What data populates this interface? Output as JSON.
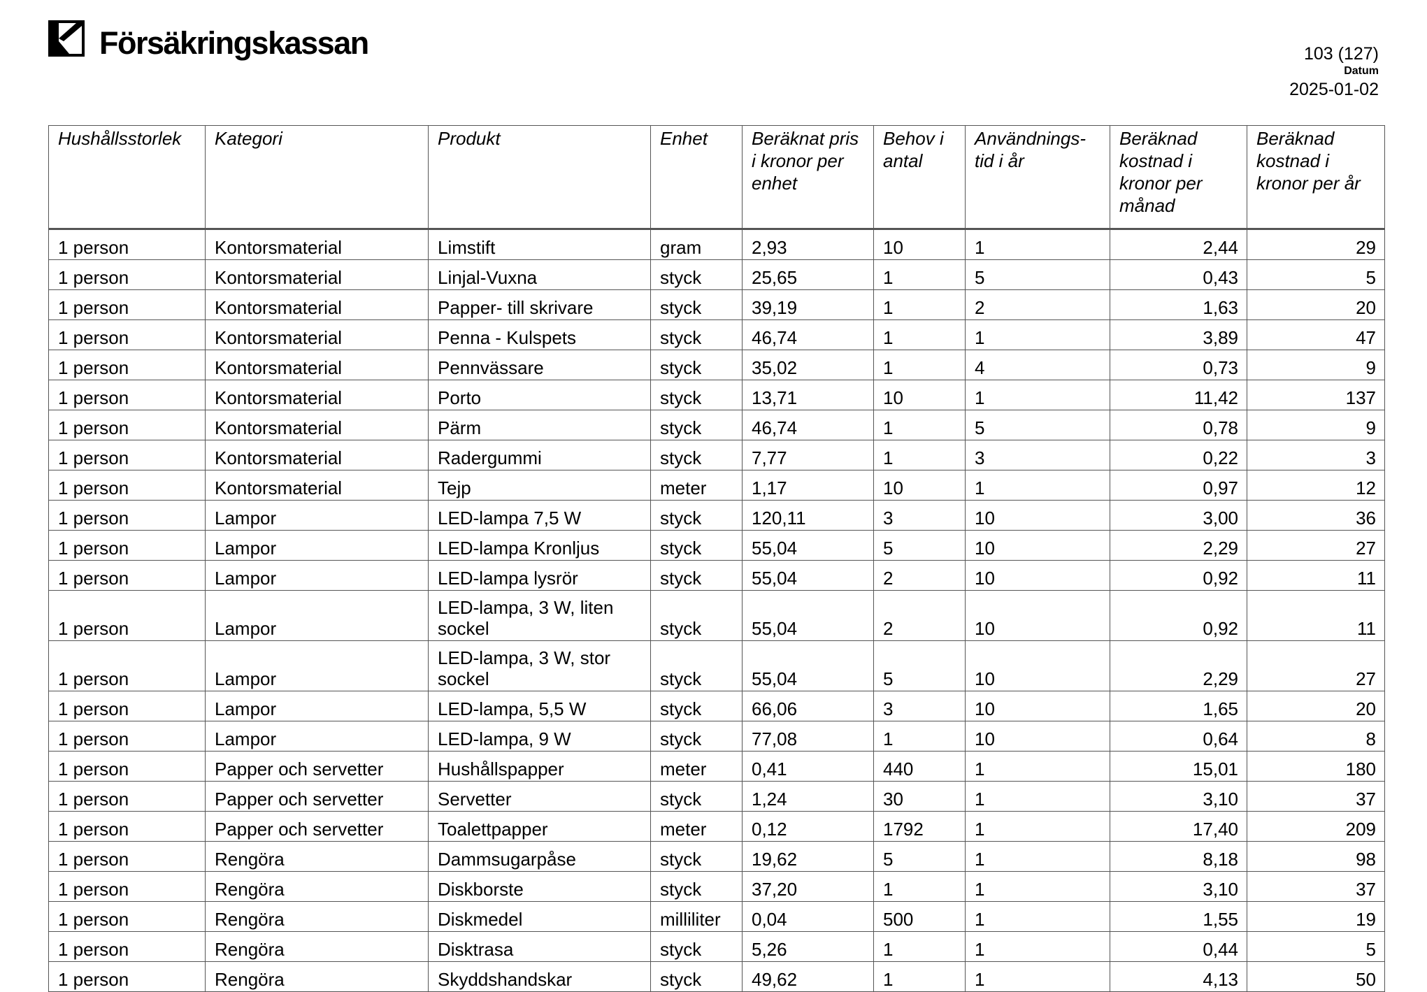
{
  "header": {
    "brand": "Försäkringskassan",
    "page_number": "103 (127)",
    "date_label": "Datum",
    "date": "2025-01-02"
  },
  "table": {
    "columns": [
      "Hushållsstorlek",
      "Kategori",
      "Produkt",
      "Enhet",
      "Beräknat pris i kronor per enhet",
      "Behov i antal",
      "Användnings-tid i år",
      "Beräknad kostnad i kronor per månad",
      "Beräknad kostnad i kronor per år"
    ],
    "rows": [
      [
        "1 person",
        "Kontorsmaterial",
        "Limstift",
        "gram",
        "2,93",
        "10",
        "1",
        "2,44",
        "29"
      ],
      [
        "1 person",
        "Kontorsmaterial",
        "Linjal-Vuxna",
        "styck",
        "25,65",
        "1",
        "5",
        "0,43",
        "5"
      ],
      [
        "1 person",
        "Kontorsmaterial",
        "Papper- till skrivare",
        "styck",
        "39,19",
        "1",
        "2",
        "1,63",
        "20"
      ],
      [
        "1 person",
        "Kontorsmaterial",
        "Penna - Kulspets",
        "styck",
        "46,74",
        "1",
        "1",
        "3,89",
        "47"
      ],
      [
        "1 person",
        "Kontorsmaterial",
        "Pennvässare",
        "styck",
        "35,02",
        "1",
        "4",
        "0,73",
        "9"
      ],
      [
        "1 person",
        "Kontorsmaterial",
        "Porto",
        "styck",
        "13,71",
        "10",
        "1",
        "11,42",
        "137"
      ],
      [
        "1 person",
        "Kontorsmaterial",
        "Pärm",
        "styck",
        "46,74",
        "1",
        "5",
        "0,78",
        "9"
      ],
      [
        "1 person",
        "Kontorsmaterial",
        "Radergummi",
        "styck",
        "7,77",
        "1",
        "3",
        "0,22",
        "3"
      ],
      [
        "1 person",
        "Kontorsmaterial",
        "Tejp",
        "meter",
        "1,17",
        "10",
        "1",
        "0,97",
        "12"
      ],
      [
        "1 person",
        "Lampor",
        "LED-lampa 7,5 W",
        "styck",
        "120,11",
        "3",
        "10",
        "3,00",
        "36"
      ],
      [
        "1 person",
        "Lampor",
        "LED-lampa Kronljus",
        "styck",
        "55,04",
        "5",
        "10",
        "2,29",
        "27"
      ],
      [
        "1 person",
        "Lampor",
        "LED-lampa lysrör",
        "styck",
        "55,04",
        "2",
        "10",
        "0,92",
        "11"
      ],
      [
        "1 person",
        "Lampor",
        "LED-lampa, 3 W, liten sockel",
        "styck",
        "55,04",
        "2",
        "10",
        "0,92",
        "11"
      ],
      [
        "1 person",
        "Lampor",
        "LED-lampa, 3 W, stor sockel",
        "styck",
        "55,04",
        "5",
        "10",
        "2,29",
        "27"
      ],
      [
        "1 person",
        "Lampor",
        "LED-lampa, 5,5 W",
        "styck",
        "66,06",
        "3",
        "10",
        "1,65",
        "20"
      ],
      [
        "1 person",
        "Lampor",
        "LED-lampa, 9 W",
        "styck",
        "77,08",
        "1",
        "10",
        "0,64",
        "8"
      ],
      [
        "1 person",
        "Papper och servetter",
        "Hushållspapper",
        "meter",
        "0,41",
        "440",
        "1",
        "15,01",
        "180"
      ],
      [
        "1 person",
        "Papper och servetter",
        "Servetter",
        "styck",
        "1,24",
        "30",
        "1",
        "3,10",
        "37"
      ],
      [
        "1 person",
        "Papper och servetter",
        "Toalettpapper",
        "meter",
        "0,12",
        "1792",
        "1",
        "17,40",
        "209"
      ],
      [
        "1 person",
        "Rengöra",
        "Dammsugarpåse",
        "styck",
        "19,62",
        "5",
        "1",
        "8,18",
        "98"
      ],
      [
        "1 person",
        "Rengöra",
        "Diskborste",
        "styck",
        "37,20",
        "1",
        "1",
        "3,10",
        "37"
      ],
      [
        "1 person",
        "Rengöra",
        "Diskmedel",
        "milliliter",
        "0,04",
        "500",
        "1",
        "1,55",
        "19"
      ],
      [
        "1 person",
        "Rengöra",
        "Disktrasa",
        "styck",
        "5,26",
        "1",
        "1",
        "0,44",
        "5"
      ],
      [
        "1 person",
        "Rengöra",
        "Skyddshandskar",
        "styck",
        "49,62",
        "1",
        "1",
        "4,13",
        "50"
      ]
    ]
  }
}
